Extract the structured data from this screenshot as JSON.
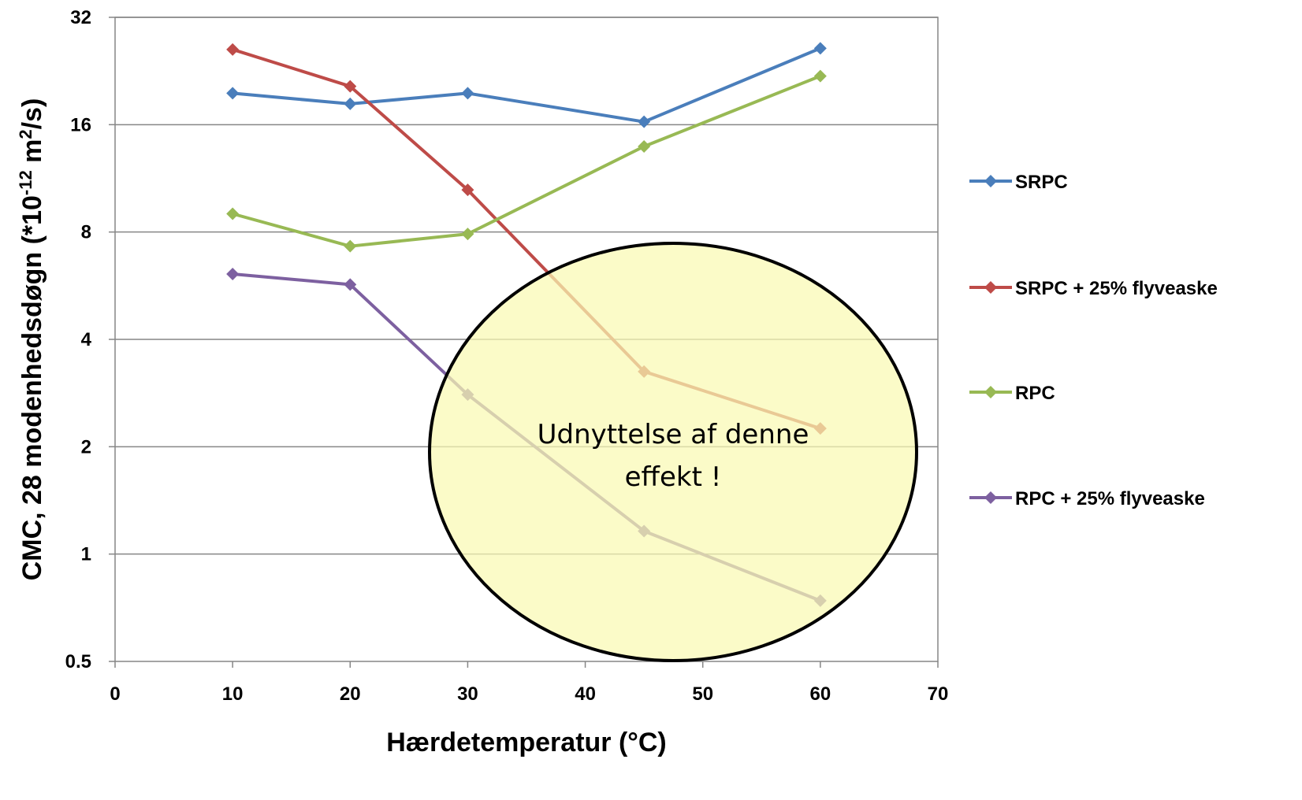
{
  "chart_data": {
    "type": "line",
    "title": "",
    "xlabel": "Hærdetemperatur (°C)",
    "ylabel": {
      "prefix": "CMC, 28 modenhedsdøgn (*10",
      "exponent": "-12",
      "unit": " m",
      "unit_exponent": "2",
      "suffix": "/s)"
    },
    "xlim": [
      0,
      70
    ],
    "ylim": [
      0.5,
      32
    ],
    "y_scale": "log2",
    "x_ticks": [
      "0",
      "10",
      "20",
      "30",
      "40",
      "50",
      "60",
      "70"
    ],
    "y_ticks": [
      "0.5",
      "1",
      "2",
      "4",
      "8",
      "16",
      "32"
    ],
    "grid": "horizontal",
    "legend_position": "right",
    "x": [
      10,
      20,
      30,
      45,
      60
    ],
    "series": [
      {
        "name": "SRPC",
        "color": "#4a7ebb",
        "values": [
          19.6,
          18.3,
          19.6,
          16.3,
          26.2
        ]
      },
      {
        "name": "SRPC + 25% flyveaske",
        "color": "#be4b48",
        "values": [
          26.0,
          20.5,
          10.5,
          3.25,
          2.25
        ]
      },
      {
        "name": "RPC",
        "color": "#98b954",
        "values": [
          9.0,
          7.3,
          7.9,
          13.9,
          21.9
        ]
      },
      {
        "name": "RPC + 25% flyveaske",
        "color": "#7d60a0",
        "values": [
          6.1,
          5.7,
          2.8,
          1.16,
          0.74
        ]
      }
    ],
    "annotation": {
      "lines": [
        "Udnyttelse af denne",
        "effekt !"
      ],
      "fill": "#fafab3",
      "stroke": "#000000"
    }
  }
}
